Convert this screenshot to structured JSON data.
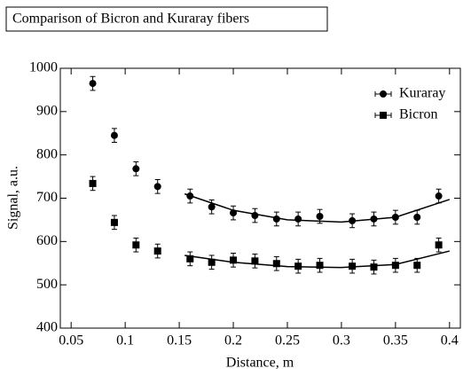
{
  "chart_data": {
    "type": "scatter",
    "title": "Comparison of Bicron and Kuraray fibers",
    "x_label": "Distance, m",
    "y_label": "Signal, a.u.",
    "xlim": [
      0.04,
      0.41
    ],
    "ylim": [
      400,
      1000
    ],
    "xticks": [
      0.05,
      0.1,
      0.15,
      0.2,
      0.25,
      0.3,
      0.35,
      0.4
    ],
    "yticks": [
      400,
      500,
      600,
      700,
      800,
      900,
      1000
    ],
    "legend": "upper right",
    "series": [
      {
        "name": "Kuraray",
        "color": "#000000",
        "marker": "circle",
        "x": [
          0.07,
          0.09,
          0.11,
          0.13,
          0.16,
          0.18,
          0.2,
          0.22,
          0.24,
          0.26,
          0.28,
          0.31,
          0.33,
          0.35,
          0.37,
          0.39
        ],
        "values": [
          965,
          845,
          768,
          727,
          705,
          680,
          666,
          660,
          652,
          652,
          658,
          648,
          652,
          656,
          656,
          705
        ],
        "errors": [
          16,
          16,
          16,
          16,
          16,
          16,
          16,
          16,
          16,
          16,
          16,
          16,
          16,
          16,
          16,
          16
        ],
        "fit": {
          "x": [
            0.155,
            0.2,
            0.25,
            0.3,
            0.35,
            0.4
          ],
          "values": [
            710,
            672,
            650,
            645,
            656,
            697
          ]
        }
      },
      {
        "name": "Bicron",
        "color": "#000000",
        "marker": "square",
        "x": [
          0.07,
          0.09,
          0.11,
          0.13,
          0.16,
          0.18,
          0.2,
          0.22,
          0.24,
          0.26,
          0.28,
          0.31,
          0.33,
          0.35,
          0.37,
          0.39
        ],
        "values": [
          734,
          644,
          592,
          578,
          560,
          552,
          557,
          555,
          549,
          543,
          545,
          543,
          541,
          545,
          545,
          592
        ],
        "errors": [
          16,
          16,
          16,
          16,
          16,
          16,
          16,
          16,
          16,
          16,
          16,
          16,
          16,
          16,
          16,
          16
        ],
        "fit": {
          "x": [
            0.155,
            0.2,
            0.25,
            0.3,
            0.35,
            0.4
          ],
          "values": [
            568,
            552,
            542,
            540,
            547,
            578
          ]
        }
      }
    ]
  }
}
